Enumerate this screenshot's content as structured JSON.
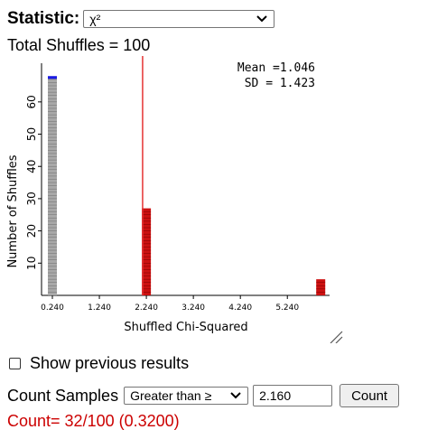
{
  "statistic": {
    "label": "Statistic:",
    "selected": "χ²"
  },
  "total": "Total Shuffles = 100",
  "stats": {
    "mean": "Mean =1.046",
    "sd": "SD = 1.423"
  },
  "chart_data": {
    "type": "bar",
    "xlabel": "Shuffled Chi-Squared",
    "ylabel": "Number of Shuffles",
    "x_ticks": [
      "0.240",
      "1.240",
      "2.240",
      "3.240",
      "4.240",
      "5.240"
    ],
    "y_ticks": [
      "10",
      "20",
      "30",
      "40",
      "50",
      "60"
    ],
    "xlim": [
      0.24,
      6.1
    ],
    "ylim": [
      0,
      72
    ],
    "bars": [
      {
        "x": 0.24,
        "count": 68,
        "color": "#a8a8a8",
        "top_color": "#1a1ae6"
      },
      {
        "x": 2.24,
        "count": 27,
        "color": "#cc1111"
      },
      {
        "x": 5.95,
        "count": 5,
        "color": "#cc1111"
      }
    ],
    "reference_x": 2.16,
    "reference_color": "#e63333"
  },
  "show_previous": {
    "label": "Show previous results",
    "checked": false
  },
  "count": {
    "label": "Count Samples",
    "comparator": "Greater than ≥",
    "value": "2.160",
    "button": "Count",
    "result": "Count= 32/100 (0.3200)"
  },
  "colors": {
    "result": "#cc0000"
  }
}
